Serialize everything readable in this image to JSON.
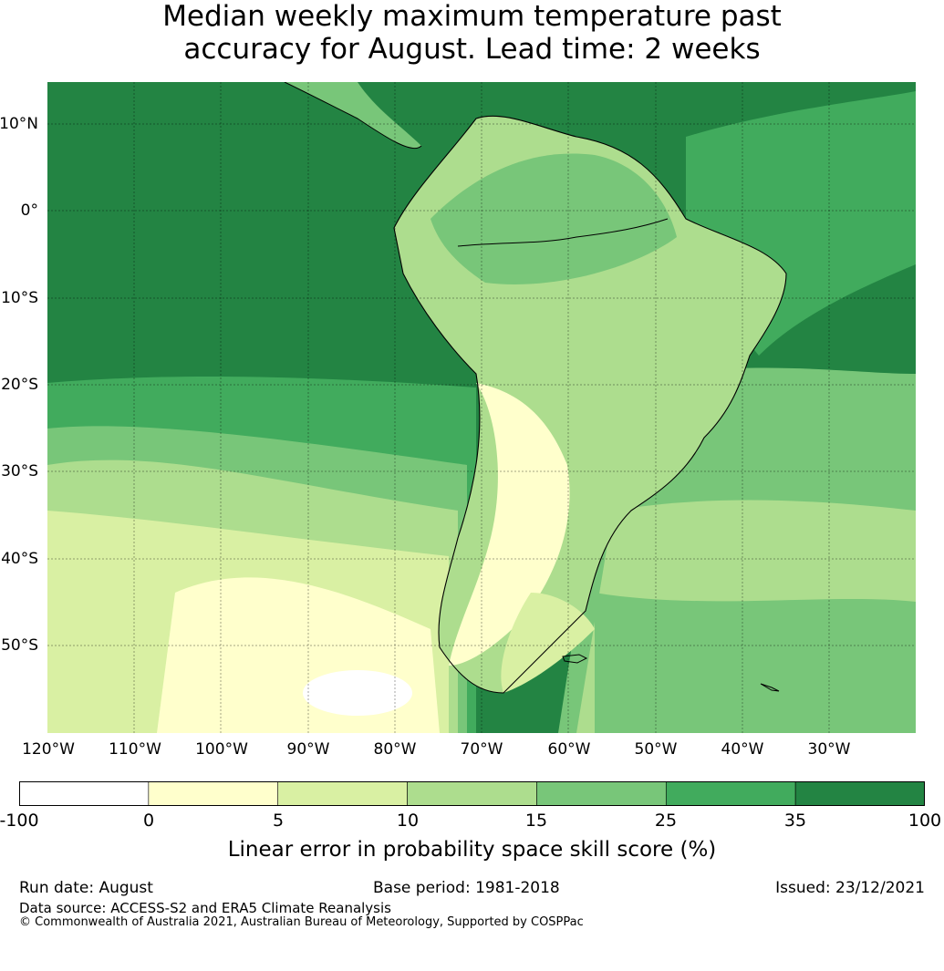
{
  "title": {
    "line1": "Median weekly maximum temperature past",
    "line2": "accuracy for August. Lead time: 2 weeks"
  },
  "map": {
    "lat_labels": [
      "10°N",
      "0°",
      "10°S",
      "20°S",
      "30°S",
      "40°S",
      "50°S"
    ],
    "lon_labels": [
      "120°W",
      "110°W",
      "100°W",
      "90°W",
      "80°W",
      "70°W",
      "60°W",
      "50°W",
      "40°W",
      "30°W"
    ],
    "gridlines": true
  },
  "colorbar": {
    "ticks": [
      "-100",
      "0",
      "5",
      "10",
      "15",
      "25",
      "35",
      "100"
    ],
    "colors": [
      "#ffffff",
      "#ffffcc",
      "#d9f0a3",
      "#addd8e",
      "#78c679",
      "#41ab5d",
      "#238443"
    ],
    "label": "Linear error in probability space skill score (%)"
  },
  "footer": {
    "run_date": "Run date: August",
    "base_period": "Base period: 1981-2018",
    "issued": "Issued: 23/12/2021",
    "data_source": "Data source: ACCESS-S2 and ERA5 Climate Reanalysis",
    "copyright": "© Commonwealth of Australia 2021, Australian Bureau of Meteorology, Supported by COSPPac"
  }
}
